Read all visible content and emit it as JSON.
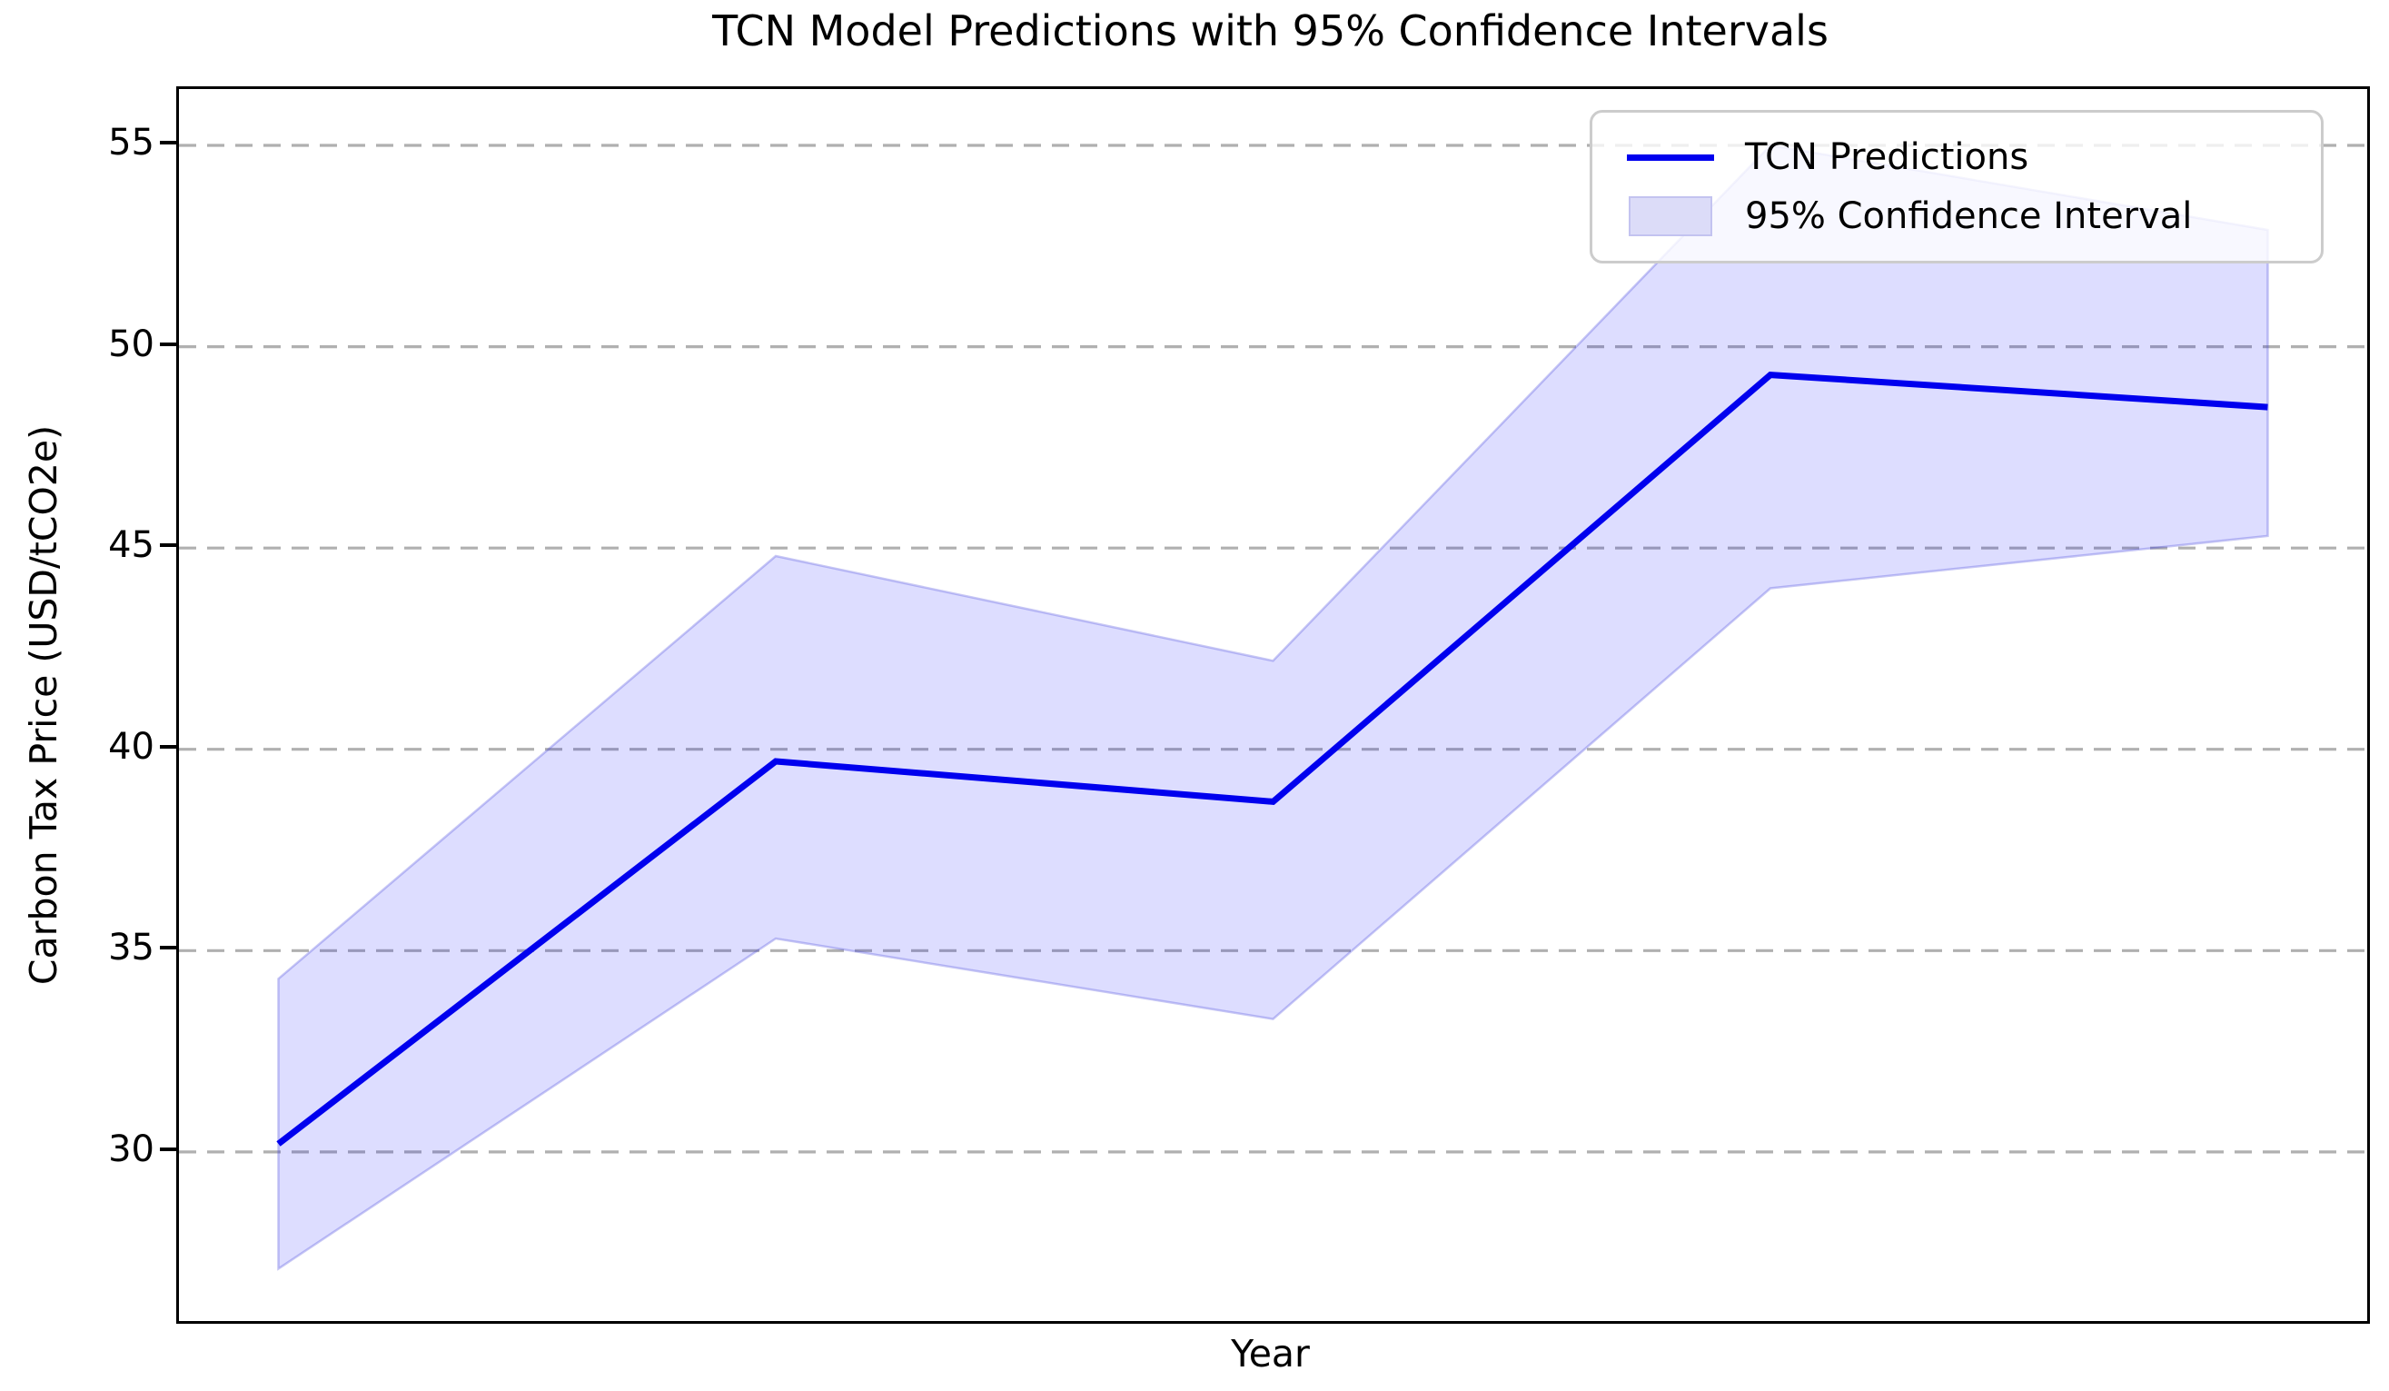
{
  "figure": {
    "background": "#ffffff"
  },
  "chart_data": {
    "type": "line",
    "title": "TCN Model Predictions with 95% Confidence Intervals",
    "xlabel": "Year",
    "ylabel": "Carbon Tax Price (USD/tCO2e)",
    "x": [
      0,
      1,
      2,
      3,
      4
    ],
    "x_tick_labels": [],
    "series": [
      {
        "name": "TCN Predictions",
        "values": [
          30.2,
          39.7,
          38.7,
          49.3,
          48.5
        ],
        "color": "#0000ee",
        "linewidth": 7
      }
    ],
    "band": {
      "name": "95% Confidence Interval",
      "upper": [
        34.3,
        44.8,
        42.2,
        55.0,
        52.9
      ],
      "lower": [
        27.1,
        35.3,
        33.3,
        44.0,
        45.3
      ],
      "fill": "rgba(0,0,255,0.135)",
      "edge": "rgba(70,70,220,0.30)"
    },
    "ylim": [
      25.8,
      56.4
    ],
    "xlim": [
      -0.2,
      4.2
    ],
    "yticks": [
      30,
      35,
      40,
      45,
      50,
      55
    ],
    "grid": {
      "on": true,
      "color": "#b0b0b0",
      "dash": [
        19,
        12
      ],
      "linewidth": 3.2
    },
    "legend": {
      "position": "upper right",
      "entries": [
        {
          "label": "TCN Predictions",
          "type": "line"
        },
        {
          "label": "95% Confidence Interval",
          "type": "patch"
        }
      ]
    }
  }
}
